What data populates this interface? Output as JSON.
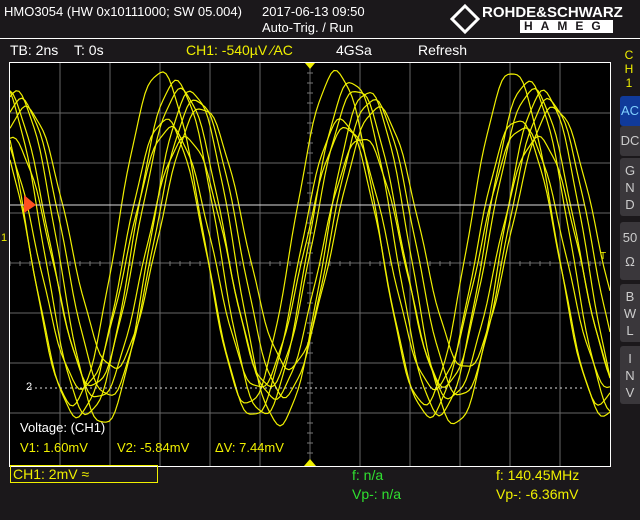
{
  "header": {
    "model": "HMO3054 (HW 0x10111000; SW 05.004)",
    "datetime": "2017-06-13 09:50",
    "trigger_state": "Auto-Trig. / Run",
    "brand_top": "ROHDE&SCHWARZ",
    "brand_bottom": "HAMEG"
  },
  "status": {
    "timebase": "TB: 2ns",
    "trigger_time": "T: 0s",
    "channel_trigger": "CH1: -540µV ⁄AC",
    "sample_rate": "4GSa",
    "mode": "Refresh"
  },
  "side_menu": {
    "channel": [
      "C",
      "H",
      "1"
    ],
    "buttons": [
      {
        "label": "AC",
        "active": true
      },
      {
        "label": "DC",
        "active": false
      },
      {
        "label": "G N D",
        "active": false
      },
      {
        "label": "50 Ω",
        "active": false
      },
      {
        "label": "B W L",
        "active": false
      },
      {
        "label": "I N V",
        "active": false
      }
    ]
  },
  "markers": {
    "channel": "1",
    "cursor2": "2",
    "trigger": "T"
  },
  "cursor_readout": {
    "title": "Voltage: (CH1)",
    "v1": "V1: 1.60mV",
    "v2": "V2: -5.84mV",
    "dv": "ΔV: 7.44mV"
  },
  "bottom": {
    "ch1_scale": "CH1: 2mV ≈",
    "f_left": "f: n/a",
    "vpp_left": "Vp-: n/a",
    "f_right": "f: 140.45MHz",
    "vpp_right": "Vp-: -6.36mV"
  },
  "colors": {
    "trace": "#f0f000",
    "accent_green": "#30e030",
    "active_button": "#103a9a"
  }
}
